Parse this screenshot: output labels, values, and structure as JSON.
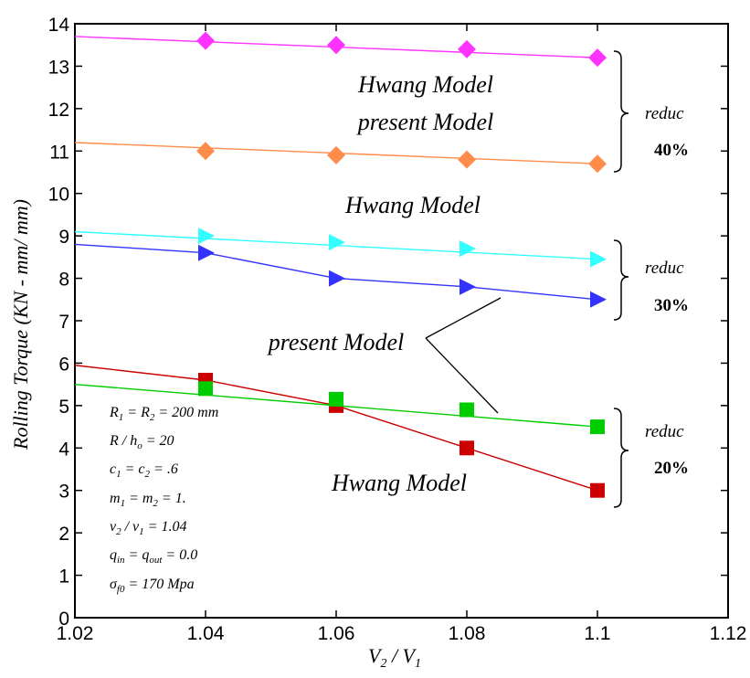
{
  "chart_data": {
    "type": "line",
    "xlabel": "V2 / V1",
    "ylabel": "Rolling  Torque  (KN - mm/ mm)",
    "xlim": [
      1.02,
      1.12
    ],
    "ylim": [
      0,
      14
    ],
    "xticks": [
      "1.02",
      "1.04",
      "1.06",
      "1.08",
      "1.1",
      "1.12"
    ],
    "yticks": [
      "0",
      "1",
      "2",
      "3",
      "4",
      "5",
      "6",
      "7",
      "8",
      "9",
      "10",
      "11",
      "12",
      "13",
      "14"
    ],
    "grid": false,
    "series": [
      {
        "color": "#ff33ff",
        "marker": "diamond",
        "line": [
          [
            1.02,
            13.7
          ],
          [
            1.1,
            13.2
          ]
        ],
        "points": [
          [
            1.04,
            13.6
          ],
          [
            1.06,
            13.5
          ],
          [
            1.08,
            13.4
          ],
          [
            1.1,
            13.2
          ]
        ]
      },
      {
        "color": "#ff8c4a",
        "marker": "diamond",
        "line": [
          [
            1.02,
            11.2
          ],
          [
            1.1,
            10.7
          ]
        ],
        "points": [
          [
            1.04,
            11.0
          ],
          [
            1.06,
            10.9
          ],
          [
            1.08,
            10.8
          ],
          [
            1.1,
            10.7
          ]
        ]
      },
      {
        "color": "#33ffff",
        "marker": "triangle-right",
        "line": [
          [
            1.02,
            9.1
          ],
          [
            1.1,
            8.45
          ]
        ],
        "points": [
          [
            1.04,
            9.0
          ],
          [
            1.06,
            8.85
          ],
          [
            1.08,
            8.7
          ],
          [
            1.1,
            8.45
          ]
        ]
      },
      {
        "color": "#3333ff",
        "marker": "triangle-right",
        "line": [
          [
            1.02,
            8.8
          ],
          [
            1.04,
            8.6
          ],
          [
            1.06,
            8.0
          ],
          [
            1.08,
            7.8
          ],
          [
            1.1,
            7.5
          ]
        ],
        "points": [
          [
            1.04,
            8.6
          ],
          [
            1.06,
            8.0
          ],
          [
            1.08,
            7.8
          ],
          [
            1.1,
            7.5
          ]
        ]
      },
      {
        "color": "#cc0000",
        "marker": "square",
        "line": [
          [
            1.02,
            5.95
          ],
          [
            1.04,
            5.6
          ],
          [
            1.06,
            5.0
          ],
          [
            1.08,
            4.0
          ],
          [
            1.1,
            3.0
          ]
        ],
        "points": [
          [
            1.04,
            5.6
          ],
          [
            1.06,
            5.0
          ],
          [
            1.08,
            4.0
          ],
          [
            1.1,
            3.0
          ]
        ]
      },
      {
        "color": "#00cc00",
        "marker": "square",
        "line": [
          [
            1.02,
            5.5
          ],
          [
            1.1,
            4.5
          ]
        ],
        "points": [
          [
            1.04,
            5.4
          ],
          [
            1.06,
            5.15
          ],
          [
            1.08,
            4.9
          ],
          [
            1.1,
            4.5
          ]
        ]
      }
    ],
    "annotations": {
      "hwang_top": "Hwang Model",
      "present_top": "present Model",
      "hwang_mid": "Hwang Model",
      "present_mid": "present Model",
      "hwang_bottom": "Hwang Model",
      "reduc": [
        "reduc",
        "reduc",
        "reduc"
      ],
      "percents": [
        "40%",
        "30%",
        "20%"
      ]
    },
    "parameters": [
      "R1 = R2 = 200  mm",
      "R / ho = 20",
      "c1 = c2 = .6",
      "m1 = m2 = 1.",
      "v2 / v1 = 1.04",
      "qin = qout = 0.0",
      "σf0 = 170  Mpa"
    ]
  }
}
